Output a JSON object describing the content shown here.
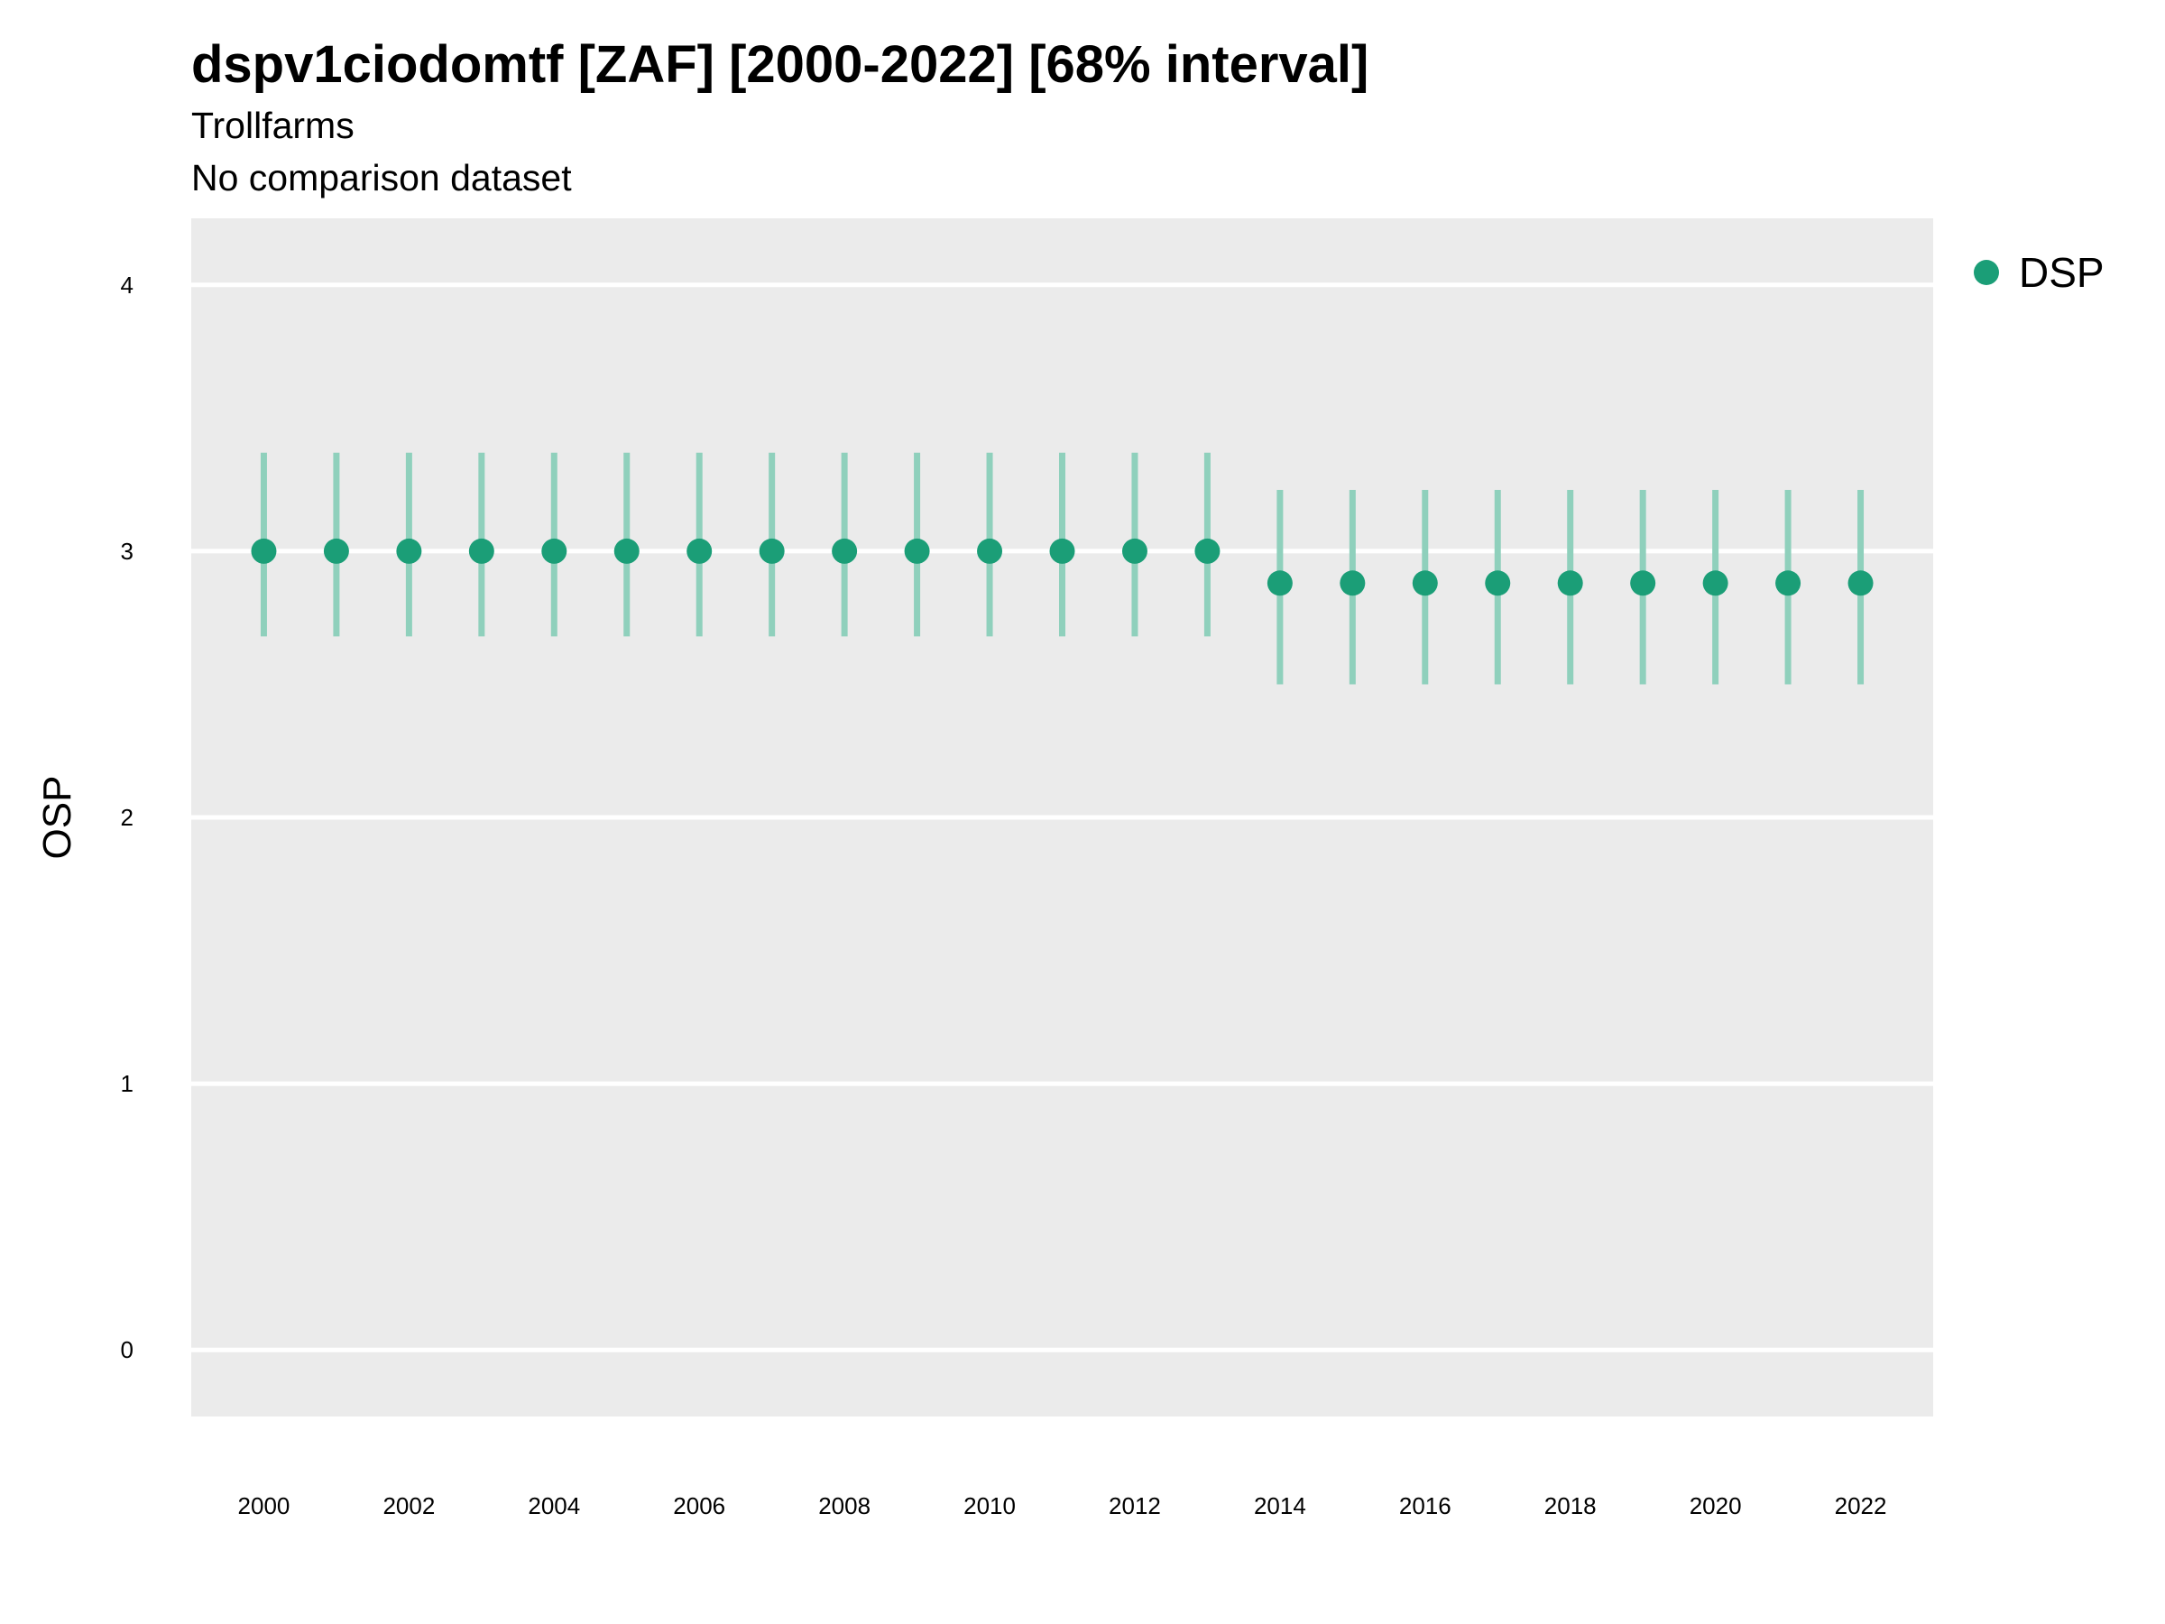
{
  "header": {
    "title": "dspv1ciodomtf [ZAF] [2000-2022] [68% interval]",
    "subtitle_line1": "Trollfarms",
    "subtitle_line2": "No comparison dataset"
  },
  "colors": {
    "panel_background": "#EBEBEB",
    "gridline": "#FFFFFF",
    "point": "#1B9E77",
    "interval": "#8FD0BC"
  },
  "chart_data": {
    "type": "scatter",
    "title": "dspv1ciodomtf [ZAF] [2000-2022] [68% interval]",
    "subtitle": [
      "Trollfarms",
      "No comparison dataset"
    ],
    "xlabel": "",
    "ylabel": "OSP",
    "xlim": [
      1999,
      2023
    ],
    "ylim": [
      -0.25,
      4.25
    ],
    "x_ticks": [
      "2000",
      "2002",
      "2004",
      "2006",
      "2008",
      "2010",
      "2012",
      "2014",
      "2016",
      "2018",
      "2020",
      "2022"
    ],
    "y_ticks": [
      "0",
      "1",
      "2",
      "3",
      "4"
    ],
    "grid": true,
    "legend_position": "top-right",
    "series": [
      {
        "name": "DSP",
        "x": [
          2000,
          2001,
          2002,
          2003,
          2004,
          2005,
          2006,
          2007,
          2008,
          2009,
          2010,
          2011,
          2012,
          2013,
          2014,
          2015,
          2016,
          2017,
          2018,
          2019,
          2020,
          2021,
          2022
        ],
        "y": [
          3.0,
          3.0,
          3.0,
          3.0,
          3.0,
          3.0,
          3.0,
          3.0,
          3.0,
          3.0,
          3.0,
          3.0,
          3.0,
          3.0,
          2.88,
          2.88,
          2.88,
          2.88,
          2.88,
          2.88,
          2.88,
          2.88,
          2.88
        ],
        "lower": [
          2.68,
          2.68,
          2.68,
          2.68,
          2.68,
          2.68,
          2.68,
          2.68,
          2.68,
          2.68,
          2.68,
          2.68,
          2.68,
          2.68,
          2.5,
          2.5,
          2.5,
          2.5,
          2.5,
          2.5,
          2.5,
          2.5,
          2.5
        ],
        "upper": [
          3.37,
          3.37,
          3.37,
          3.37,
          3.37,
          3.37,
          3.37,
          3.37,
          3.37,
          3.37,
          3.37,
          3.37,
          3.37,
          3.37,
          3.23,
          3.23,
          3.23,
          3.23,
          3.23,
          3.23,
          3.23,
          3.23,
          3.23
        ]
      }
    ]
  }
}
